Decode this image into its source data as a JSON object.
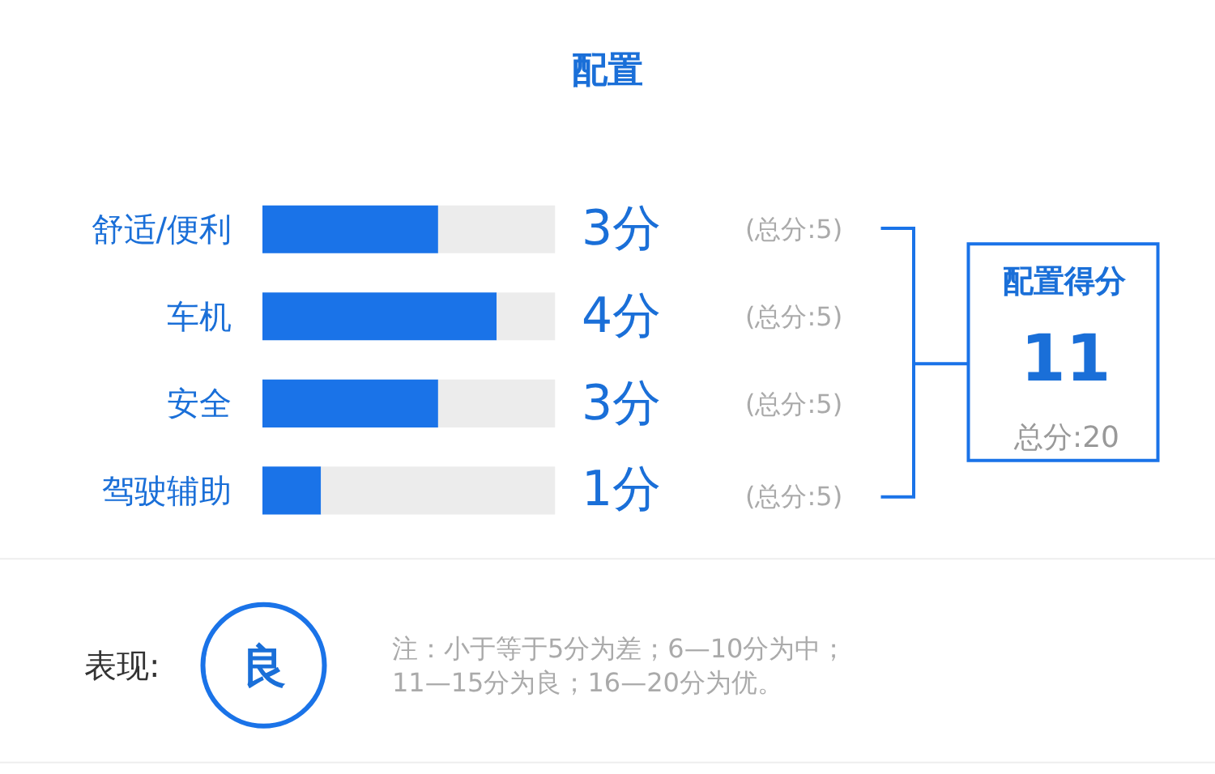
{
  "chart_data": {
    "type": "bar",
    "orientation": "horizontal",
    "title": "配置",
    "categories": [
      "舒适/便利",
      "车机",
      "安全",
      "驾驶辅助"
    ],
    "series": [
      {
        "color": "#1a73e8",
        "values": [
          3,
          4,
          3,
          1
        ],
        "value_labels": [
          "3分",
          "4分",
          "3分",
          "1分"
        ]
      },
      {
        "color": "#ececec",
        "values": [
          2,
          1,
          2,
          4
        ]
      }
    ],
    "stacked": true,
    "xlim": [
      0,
      5
    ],
    "tick_labels": "y",
    "annotations": [
      "(总分:5)",
      "(总分:5)",
      "(总分:5)",
      "(总分:5)",
      "配置得分",
      "11",
      "总分:20",
      "表现:",
      "良",
      "注：小于等于5分为差；6—10分为中；\n11—15分为良；16—20分为优。"
    ]
  }
}
